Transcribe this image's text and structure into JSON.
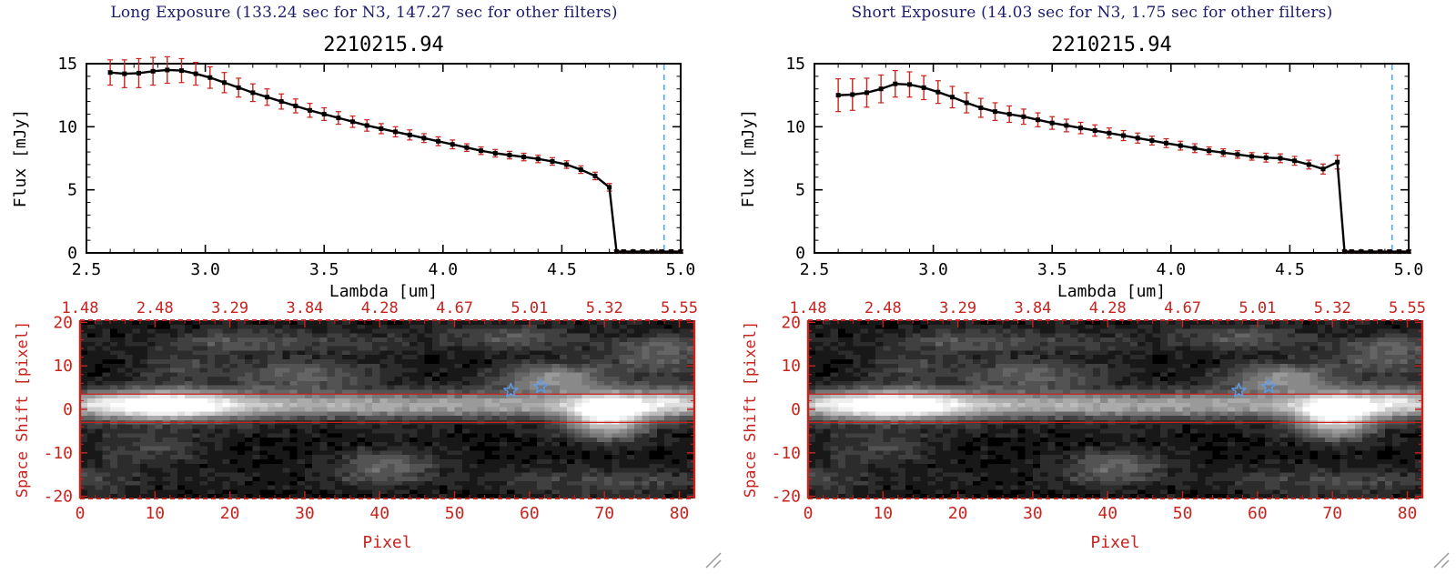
{
  "colors": {
    "axis_red": "#c8231d",
    "header_navy": "#1c1c6e",
    "star_blue": "#5d9cec",
    "vline_cyan": "#4da6ff",
    "plot_black": "#000000"
  },
  "panels": [
    {
      "header": "Long Exposure (133.24 sec for N3, 147.27 sec for other filters)"
    },
    {
      "header": "Short Exposure (14.03 sec for N3, 1.75 sec for other filters)"
    }
  ],
  "chart_data": [
    {
      "type": "line",
      "panel": "long-exposure",
      "title": "2210215.94",
      "xlabel": "Lambda [um]",
      "ylabel": "Flux [mJy]",
      "xlim": [
        2.5,
        5.0
      ],
      "ylim": [
        0,
        15
      ],
      "xticks": [
        "2.5",
        "3.0",
        "3.5",
        "4.0",
        "4.5",
        "5.0"
      ],
      "yticks": [
        "0",
        "5",
        "10",
        "15"
      ],
      "x_major": 0.5,
      "x_minor": 0.1,
      "y_major": 5,
      "y_minor": 1,
      "marker": "filled-square",
      "line_color": "#000000",
      "errorbar_color": "#c8231d",
      "dashed_vline": {
        "x": 4.93,
        "color": "#4da6ff"
      },
      "x": [
        2.6,
        2.66,
        2.72,
        2.78,
        2.84,
        2.9,
        2.96,
        3.02,
        3.08,
        3.14,
        3.2,
        3.26,
        3.32,
        3.38,
        3.44,
        3.5,
        3.56,
        3.62,
        3.68,
        3.74,
        3.8,
        3.86,
        3.92,
        3.98,
        4.04,
        4.1,
        4.16,
        4.22,
        4.28,
        4.34,
        4.4,
        4.46,
        4.52,
        4.58,
        4.64,
        4.7,
        4.73,
        4.76,
        4.8,
        4.84,
        4.88,
        4.92,
        4.96,
        5.0
      ],
      "y": [
        14.3,
        14.2,
        14.25,
        14.4,
        14.5,
        14.45,
        14.2,
        13.9,
        13.5,
        13.1,
        12.7,
        12.35,
        12.0,
        11.65,
        11.3,
        11.0,
        10.7,
        10.4,
        10.1,
        9.85,
        9.6,
        9.35,
        9.1,
        8.85,
        8.6,
        8.35,
        8.1,
        7.9,
        7.75,
        7.6,
        7.45,
        7.25,
        7.0,
        6.6,
        6.1,
        5.2,
        0.1,
        0.1,
        0.1,
        0.1,
        0.1,
        0.1,
        0.1,
        0.1
      ],
      "yerr": [
        1.0,
        1.1,
        1.15,
        1.1,
        1.05,
        0.95,
        0.9,
        0.85,
        0.8,
        0.75,
        0.7,
        0.65,
        0.6,
        0.55,
        0.55,
        0.5,
        0.5,
        0.45,
        0.45,
        0.4,
        0.4,
        0.4,
        0.35,
        0.35,
        0.35,
        0.3,
        0.3,
        0.3,
        0.3,
        0.3,
        0.3,
        0.3,
        0.3,
        0.3,
        0.3,
        0.3,
        0.12,
        0.12,
        0.12,
        0.12,
        0.12,
        0.12,
        0.12,
        0.12
      ]
    },
    {
      "type": "heatmap",
      "panel": "long-exposure",
      "xlabel": "Pixel",
      "ylabel": "Space Shift [pixel]",
      "xlim": [
        0,
        82
      ],
      "ylim": [
        -20.5,
        20.5
      ],
      "xticks": [
        "0",
        "10",
        "20",
        "30",
        "40",
        "50",
        "60",
        "70",
        "80"
      ],
      "yticks": [
        "20",
        "10",
        "0",
        "-10",
        "-20"
      ],
      "top_axis_labels": [
        "1.48",
        "2.48",
        "3.29",
        "3.84",
        "4.28",
        "4.67",
        "5.01",
        "5.32",
        "5.55"
      ],
      "x_major": 10,
      "x_minor": 2,
      "y_major": 10,
      "y_minor": 2,
      "axis_color": "#c8231d",
      "aperture_lines_y": [
        3.5,
        -3.0
      ],
      "stars": [
        {
          "x": 57.5,
          "y": 4.3
        },
        {
          "x": 61.5,
          "y": 5.2
        }
      ],
      "image_model": {
        "background": 0.05,
        "noise_amp": 0.12,
        "noise_seed": 7,
        "posterize_levels": 14,
        "gamma": 0.9,
        "band": {
          "y": 1.0,
          "sigma": 2.1,
          "amp": 0.45
        },
        "blobs": [
          {
            "x": 11,
            "y": 1,
            "sx": 7,
            "sy": 2.6,
            "amp": 0.7
          },
          {
            "x": 38,
            "y": 1,
            "sx": 28,
            "sy": 2.0,
            "amp": 0.15
          },
          {
            "x": 70.5,
            "y": -1.5,
            "sx": 3.6,
            "sy": 3.4,
            "amp": 0.85
          },
          {
            "x": 79,
            "y": 2,
            "sx": 4,
            "sy": 2.5,
            "amp": 0.35
          },
          {
            "x": 63,
            "y": 7,
            "sx": 5,
            "sy": 2.4,
            "amp": 0.5
          },
          {
            "x": 30,
            "y": 8,
            "sx": 7,
            "sy": 2.6,
            "amp": 0.28
          },
          {
            "x": 13,
            "y": 10,
            "sx": 4,
            "sy": 2.2,
            "amp": 0.18
          },
          {
            "x": 41,
            "y": -13,
            "sx": 5,
            "sy": 2.6,
            "amp": 0.3
          },
          {
            "x": 10,
            "y": -9,
            "sx": 5,
            "sy": 2.2,
            "amp": 0.2
          },
          {
            "x": 77,
            "y": 12,
            "sx": 5,
            "sy": 3.0,
            "amp": 0.28
          },
          {
            "x": 24,
            "y": 16,
            "sx": 9,
            "sy": 2.0,
            "amp": 0.18
          },
          {
            "x": 57,
            "y": 17,
            "sx": 7,
            "sy": 2.0,
            "amp": 0.2
          },
          {
            "x": 70,
            "y": -17,
            "sx": 7,
            "sy": 2.5,
            "amp": 0.18
          },
          {
            "x": 3,
            "y": -16,
            "sx": 4,
            "sy": 3.0,
            "amp": 0.14
          }
        ],
        "streaks": [
          {
            "y": 15,
            "sy": 1.4,
            "amp": 0.1
          },
          {
            "y": -16,
            "sy": 1.4,
            "amp": 0.08
          },
          {
            "y": -5,
            "sy": 1.2,
            "amp": 0.05
          }
        ]
      }
    },
    {
      "type": "line",
      "panel": "short-exposure",
      "title": "2210215.94",
      "xlabel": "Lambda [um]",
      "ylabel": "Flux [mJy]",
      "xlim": [
        2.5,
        5.0
      ],
      "ylim": [
        0,
        15
      ],
      "xticks": [
        "2.5",
        "3.0",
        "3.5",
        "4.0",
        "4.5",
        "5.0"
      ],
      "yticks": [
        "0",
        "5",
        "10",
        "15"
      ],
      "x_major": 0.5,
      "x_minor": 0.1,
      "y_major": 5,
      "y_minor": 1,
      "marker": "filled-square",
      "line_color": "#000000",
      "errorbar_color": "#c8231d",
      "dashed_vline": {
        "x": 4.93,
        "color": "#4da6ff"
      },
      "x": [
        2.6,
        2.66,
        2.72,
        2.78,
        2.84,
        2.9,
        2.96,
        3.02,
        3.08,
        3.14,
        3.2,
        3.26,
        3.32,
        3.38,
        3.44,
        3.5,
        3.56,
        3.62,
        3.68,
        3.74,
        3.8,
        3.86,
        3.92,
        3.98,
        4.04,
        4.1,
        4.16,
        4.22,
        4.28,
        4.34,
        4.4,
        4.46,
        4.52,
        4.58,
        4.64,
        4.7,
        4.73,
        4.76,
        4.8,
        4.84,
        4.88,
        4.92,
        4.96,
        5.0
      ],
      "y": [
        12.5,
        12.55,
        12.7,
        13.0,
        13.4,
        13.35,
        13.1,
        12.75,
        12.35,
        11.9,
        11.5,
        11.2,
        11.0,
        10.8,
        10.55,
        10.3,
        10.1,
        9.9,
        9.7,
        9.5,
        9.3,
        9.1,
        8.9,
        8.7,
        8.5,
        8.3,
        8.1,
        7.95,
        7.8,
        7.65,
        7.55,
        7.5,
        7.3,
        7.0,
        6.65,
        7.2,
        0.1,
        0.1,
        0.1,
        0.1,
        0.1,
        0.1,
        0.1,
        0.1
      ],
      "yerr": [
        1.3,
        1.25,
        1.15,
        1.1,
        1.05,
        1.0,
        0.95,
        0.9,
        0.85,
        0.8,
        0.75,
        0.7,
        0.65,
        0.6,
        0.55,
        0.5,
        0.5,
        0.45,
        0.45,
        0.4,
        0.4,
        0.4,
        0.35,
        0.35,
        0.35,
        0.35,
        0.3,
        0.3,
        0.3,
        0.3,
        0.35,
        0.35,
        0.35,
        0.35,
        0.4,
        0.55,
        0.12,
        0.12,
        0.12,
        0.12,
        0.12,
        0.12,
        0.12,
        0.12
      ]
    },
    {
      "type": "heatmap",
      "panel": "short-exposure",
      "xlabel": "Pixel",
      "ylabel": "Space Shift [pixel]",
      "xlim": [
        0,
        82
      ],
      "ylim": [
        -20.5,
        20.5
      ],
      "xticks": [
        "0",
        "10",
        "20",
        "30",
        "40",
        "50",
        "60",
        "70",
        "80"
      ],
      "yticks": [
        "20",
        "10",
        "0",
        "-10",
        "-20"
      ],
      "top_axis_labels": [
        "1.48",
        "2.48",
        "3.29",
        "3.84",
        "4.28",
        "4.67",
        "5.01",
        "5.32",
        "5.55"
      ],
      "x_major": 10,
      "x_minor": 2,
      "y_major": 10,
      "y_minor": 2,
      "axis_color": "#c8231d",
      "aperture_lines_y": [
        3.5,
        -3.0
      ],
      "stars": [
        {
          "x": 57.5,
          "y": 4.3
        },
        {
          "x": 61.5,
          "y": 5.2
        }
      ],
      "image_model": {
        "background": 0.05,
        "noise_amp": 0.12,
        "noise_seed": 7,
        "posterize_levels": 14,
        "gamma": 0.9,
        "band": {
          "y": 1.0,
          "sigma": 2.1,
          "amp": 0.45
        },
        "blobs": [
          {
            "x": 11,
            "y": 1,
            "sx": 7,
            "sy": 2.6,
            "amp": 0.7
          },
          {
            "x": 38,
            "y": 1,
            "sx": 28,
            "sy": 2.0,
            "amp": 0.15
          },
          {
            "x": 70.5,
            "y": -1.5,
            "sx": 3.6,
            "sy": 3.4,
            "amp": 0.85
          },
          {
            "x": 79,
            "y": 2,
            "sx": 4,
            "sy": 2.5,
            "amp": 0.35
          },
          {
            "x": 63,
            "y": 7,
            "sx": 5,
            "sy": 2.4,
            "amp": 0.5
          },
          {
            "x": 30,
            "y": 8,
            "sx": 7,
            "sy": 2.6,
            "amp": 0.28
          },
          {
            "x": 13,
            "y": 10,
            "sx": 4,
            "sy": 2.2,
            "amp": 0.18
          },
          {
            "x": 41,
            "y": -13,
            "sx": 5,
            "sy": 2.6,
            "amp": 0.3
          },
          {
            "x": 10,
            "y": -9,
            "sx": 5,
            "sy": 2.2,
            "amp": 0.2
          },
          {
            "x": 77,
            "y": 12,
            "sx": 5,
            "sy": 3.0,
            "amp": 0.28
          },
          {
            "x": 24,
            "y": 16,
            "sx": 9,
            "sy": 2.0,
            "amp": 0.18
          },
          {
            "x": 57,
            "y": 17,
            "sx": 7,
            "sy": 2.0,
            "amp": 0.2
          },
          {
            "x": 70,
            "y": -17,
            "sx": 7,
            "sy": 2.5,
            "amp": 0.18
          },
          {
            "x": 3,
            "y": -16,
            "sx": 4,
            "sy": 3.0,
            "amp": 0.14
          }
        ],
        "streaks": [
          {
            "y": 15,
            "sy": 1.4,
            "amp": 0.1
          },
          {
            "y": -16,
            "sy": 1.4,
            "amp": 0.08
          },
          {
            "y": -5,
            "sy": 1.2,
            "amp": 0.05
          }
        ]
      }
    }
  ]
}
